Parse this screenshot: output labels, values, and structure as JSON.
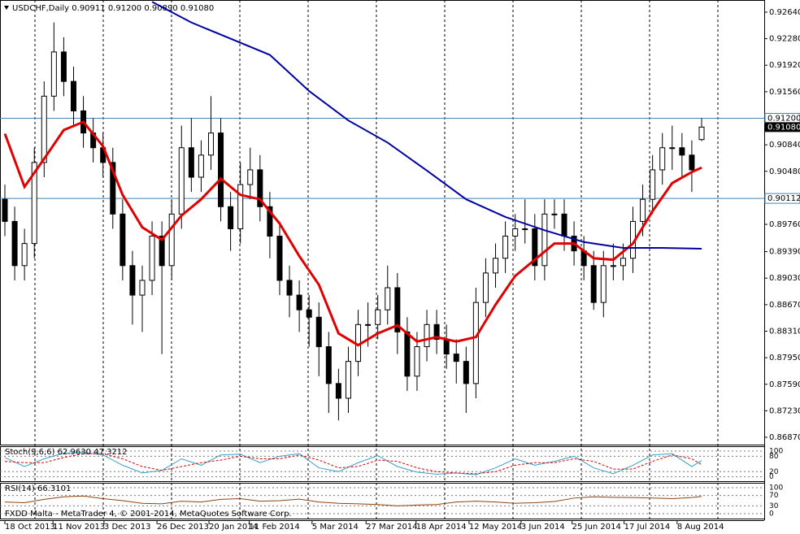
{
  "chart_data": [
    {
      "type": "candlestick",
      "title": "USDCHF,Daily  0.90911 0.91200 0.90890 0.91080",
      "ylim": [
        0.86771,
        0.92805
      ],
      "yticks": [
        {
          "value": 0.9264,
          "label": "0.92640"
        },
        {
          "value": 0.9228,
          "label": "0.92280"
        },
        {
          "value": 0.9192,
          "label": "0.91920"
        },
        {
          "value": 0.9156,
          "label": "0.91560"
        },
        {
          "value": 0.912,
          "label": "0.91200"
        },
        {
          "value": 0.9084,
          "label": "0.90840"
        },
        {
          "value": 0.9048,
          "label": "0.90480"
        },
        {
          "value": 0.9012,
          "label": "0.90120"
        },
        {
          "value": 0.8976,
          "label": "0.89760"
        },
        {
          "value": 0.8939,
          "label": "0.89390"
        },
        {
          "value": 0.8903,
          "label": "0.89030"
        },
        {
          "value": 0.8867,
          "label": "0.88670"
        },
        {
          "value": 0.8831,
          "label": "0.88310"
        },
        {
          "value": 0.8795,
          "label": "0.87950"
        },
        {
          "value": 0.8759,
          "label": "0.87590"
        },
        {
          "value": 0.8723,
          "label": "0.87230"
        },
        {
          "value": 0.8687,
          "label": "0.86870"
        }
      ],
      "xlim": [
        0,
        71
      ],
      "xticks": [
        {
          "value": 0,
          "label": "18 Oct 2013"
        },
        {
          "value": 4.9,
          "label": "11 Nov 2013"
        },
        {
          "value": 10.1,
          "label": "3 Dec 2013"
        },
        {
          "value": 15.5,
          "label": "26 Dec 2013"
        },
        {
          "value": 20.8,
          "label": "20 Jan 2014"
        },
        {
          "value": 24.9,
          "label": "11 Feb 2014"
        },
        {
          "value": 31.3,
          "label": "5 Mar 2014"
        },
        {
          "value": 36.8,
          "label": "27 Mar 2014"
        },
        {
          "value": 41.9,
          "label": "18 Apr 2014"
        },
        {
          "value": 47.3,
          "label": "12 May 2014"
        },
        {
          "value": 52.6,
          "label": "3 Jun 2014"
        },
        {
          "value": 57.8,
          "label": "25 Jun 2014"
        },
        {
          "value": 63.1,
          "label": "17 Jul 2014"
        },
        {
          "value": 68.5,
          "label": "8 Aug 2014"
        }
      ],
      "candles": [
        [
          0.901,
          0.903,
          0.896,
          0.898
        ],
        [
          0.898,
          0.9,
          0.89,
          0.892
        ],
        [
          0.892,
          0.897,
          0.89,
          0.895
        ],
        [
          0.895,
          0.908,
          0.893,
          0.906
        ],
        [
          0.906,
          0.917,
          0.904,
          0.915
        ],
        [
          0.915,
          0.925,
          0.913,
          0.921
        ],
        [
          0.921,
          0.923,
          0.915,
          0.917
        ],
        [
          0.917,
          0.919,
          0.911,
          0.913
        ],
        [
          0.913,
          0.915,
          0.908,
          0.91
        ],
        [
          0.91,
          0.912,
          0.906,
          0.908
        ],
        [
          0.908,
          0.91,
          0.904,
          0.906
        ],
        [
          0.906,
          0.908,
          0.897,
          0.899
        ],
        [
          0.899,
          0.901,
          0.89,
          0.892
        ],
        [
          0.892,
          0.894,
          0.884,
          0.888
        ],
        [
          0.888,
          0.892,
          0.883,
          0.89
        ],
        [
          0.89,
          0.898,
          0.888,
          0.896
        ],
        [
          0.896,
          0.898,
          0.88,
          0.892
        ],
        [
          0.892,
          0.901,
          0.89,
          0.899
        ],
        [
          0.899,
          0.911,
          0.897,
          0.908
        ],
        [
          0.908,
          0.912,
          0.902,
          0.904
        ],
        [
          0.904,
          0.909,
          0.902,
          0.907
        ],
        [
          0.907,
          0.915,
          0.905,
          0.91
        ],
        [
          0.91,
          0.912,
          0.898,
          0.9
        ],
        [
          0.9,
          0.902,
          0.894,
          0.897
        ],
        [
          0.897,
          0.906,
          0.895,
          0.903
        ],
        [
          0.903,
          0.908,
          0.901,
          0.905
        ],
        [
          0.905,
          0.907,
          0.898,
          0.9
        ],
        [
          0.9,
          0.902,
          0.893,
          0.896
        ],
        [
          0.896,
          0.898,
          0.888,
          0.89
        ],
        [
          0.89,
          0.892,
          0.885,
          0.888
        ],
        [
          0.888,
          0.89,
          0.883,
          0.886
        ],
        [
          0.886,
          0.888,
          0.881,
          0.885
        ],
        [
          0.885,
          0.887,
          0.877,
          0.881
        ],
        [
          0.881,
          0.883,
          0.872,
          0.876
        ],
        [
          0.876,
          0.878,
          0.871,
          0.874
        ],
        [
          0.874,
          0.881,
          0.872,
          0.879
        ],
        [
          0.879,
          0.886,
          0.877,
          0.884
        ],
        [
          0.884,
          0.887,
          0.881,
          0.884
        ],
        [
          0.884,
          0.888,
          0.882,
          0.886
        ],
        [
          0.886,
          0.892,
          0.884,
          0.889
        ],
        [
          0.889,
          0.891,
          0.88,
          0.883
        ],
        [
          0.883,
          0.885,
          0.875,
          0.877
        ],
        [
          0.877,
          0.883,
          0.875,
          0.881
        ],
        [
          0.881,
          0.886,
          0.879,
          0.884
        ],
        [
          0.884,
          0.886,
          0.88,
          0.882
        ],
        [
          0.882,
          0.884,
          0.878,
          0.88
        ],
        [
          0.88,
          0.882,
          0.876,
          0.879
        ],
        [
          0.879,
          0.881,
          0.872,
          0.876
        ],
        [
          0.876,
          0.889,
          0.874,
          0.887
        ],
        [
          0.887,
          0.893,
          0.885,
          0.891
        ],
        [
          0.891,
          0.895,
          0.889,
          0.893
        ],
        [
          0.893,
          0.898,
          0.891,
          0.896
        ],
        [
          0.896,
          0.899,
          0.894,
          0.897
        ],
        [
          0.897,
          0.901,
          0.895,
          0.897
        ],
        [
          0.897,
          0.899,
          0.89,
          0.892
        ],
        [
          0.892,
          0.901,
          0.89,
          0.899
        ],
        [
          0.899,
          0.901,
          0.897,
          0.899
        ],
        [
          0.899,
          0.901,
          0.894,
          0.896
        ],
        [
          0.896,
          0.898,
          0.892,
          0.894
        ],
        [
          0.894,
          0.896,
          0.89,
          0.892
        ],
        [
          0.892,
          0.894,
          0.886,
          0.887
        ],
        [
          0.887,
          0.894,
          0.885,
          0.892
        ],
        [
          0.892,
          0.895,
          0.89,
          0.892
        ],
        [
          0.892,
          0.895,
          0.89,
          0.893
        ],
        [
          0.893,
          0.9,
          0.891,
          0.898
        ],
        [
          0.898,
          0.903,
          0.896,
          0.901
        ],
        [
          0.901,
          0.907,
          0.899,
          0.905
        ],
        [
          0.905,
          0.91,
          0.903,
          0.908
        ],
        [
          0.908,
          0.911,
          0.905,
          0.908
        ],
        [
          0.908,
          0.91,
          0.904,
          0.907
        ],
        [
          0.907,
          0.909,
          0.902,
          0.905
        ],
        [
          0.90911,
          0.912,
          0.9089,
          0.9108
        ]
      ],
      "series": [
        {
          "color": "#e00000",
          "x": [
            0,
            2,
            4,
            6,
            8,
            10,
            12,
            14,
            16,
            18,
            20,
            22,
            24,
            26,
            28,
            30,
            32,
            34,
            36,
            38,
            40,
            42,
            44,
            46,
            48,
            50,
            52,
            54,
            56,
            58,
            60,
            62,
            64,
            66,
            68,
            70,
            71
          ],
          "values": [
            0.9099,
            0.9027,
            0.9065,
            0.9104,
            0.9115,
            0.9082,
            0.9016,
            0.8972,
            0.8955,
            0.8988,
            0.901,
            0.9038,
            0.9016,
            0.901,
            0.8977,
            0.8933,
            0.8894,
            0.8828,
            0.8812,
            0.8828,
            0.8839,
            0.8817,
            0.8823,
            0.8817,
            0.8823,
            0.8867,
            0.8906,
            0.8928,
            0.895,
            0.895,
            0.893,
            0.8928,
            0.895,
            0.8994,
            0.9032,
            0.9047,
            0.9053
          ]
        },
        {
          "color": "#0000a0",
          "x": [
            15,
            19,
            23,
            27,
            31,
            35,
            39,
            43,
            47,
            51,
            55,
            59,
            63,
            67,
            71
          ],
          "values": [
            0.9278,
            0.925,
            0.9228,
            0.9206,
            0.9157,
            0.9117,
            0.9087,
            0.9049,
            0.901,
            0.8986,
            0.8968,
            0.8952,
            0.8944,
            0.8944,
            0.8943
          ]
        }
      ],
      "price_lines": [
        {
          "value": 0.912,
          "label": "0.91200"
        },
        {
          "value": 0.90112,
          "label": "0.90112"
        }
      ],
      "bid": {
        "value": 0.9108,
        "label": "0.91080"
      },
      "footer": "FXDD Malta - MetaTrader 4, © 2001-2014, MetaQuotes Software Corp."
    },
    {
      "type": "line",
      "title": "Stoch(9,6,6) 62.9630 47.3212",
      "ylim": [
        -17,
        119
      ],
      "yticks": [
        100,
        80,
        20,
        0
      ],
      "x": [
        0,
        2,
        4,
        6,
        8,
        10,
        12,
        14,
        16,
        18,
        20,
        22,
        24,
        26,
        28,
        30,
        32,
        34,
        36,
        38,
        40,
        42,
        44,
        46,
        48,
        50,
        52,
        54,
        56,
        58,
        60,
        62,
        64,
        66,
        68,
        70,
        71
      ],
      "series": [
        {
          "color": "#3aa0c8",
          "dash": false,
          "values": [
            75,
            40,
            70,
            92,
            95,
            85,
            45,
            15,
            25,
            70,
            45,
            85,
            88,
            55,
            80,
            90,
            35,
            20,
            55,
            82,
            40,
            18,
            10,
            15,
            8,
            35,
            70,
            45,
            60,
            80,
            35,
            12,
            45,
            85,
            90,
            40,
            62.963
          ]
        },
        {
          "color": "#e00000",
          "dash": true,
          "values": [
            60,
            55,
            55,
            75,
            90,
            90,
            70,
            40,
            25,
            40,
            55,
            65,
            80,
            70,
            70,
            85,
            65,
            35,
            40,
            65,
            60,
            35,
            20,
            15,
            12,
            20,
            45,
            55,
            55,
            70,
            60,
            30,
            30,
            60,
            85,
            70,
            47.3212
          ]
        }
      ]
    },
    {
      "type": "line",
      "title": "RSI(14) 66.3101",
      "ylim": [
        -19,
        119
      ],
      "yticks": [
        100,
        70,
        30,
        0
      ],
      "x": [
        0,
        2,
        4,
        6,
        8,
        10,
        12,
        14,
        16,
        18,
        20,
        22,
        24,
        26,
        28,
        30,
        32,
        34,
        36,
        38,
        40,
        42,
        44,
        46,
        48,
        50,
        52,
        54,
        56,
        58,
        60,
        62,
        64,
        66,
        68,
        70,
        71
      ],
      "series": [
        {
          "color": "#8b4513",
          "dash": false,
          "values": [
            45,
            42,
            55,
            65,
            68,
            58,
            50,
            40,
            38,
            48,
            45,
            55,
            58,
            48,
            50,
            56,
            45,
            40,
            38,
            35,
            30,
            33,
            35,
            45,
            48,
            45,
            40,
            42,
            47,
            60,
            65,
            63,
            62,
            60,
            58,
            62,
            66.3101
          ]
        }
      ]
    }
  ]
}
